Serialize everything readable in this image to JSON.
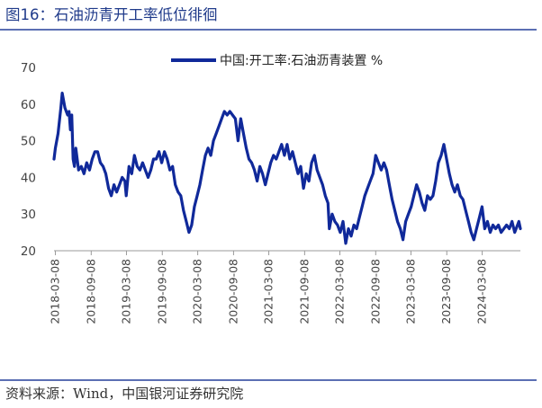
{
  "figure": {
    "title": "图16：石油沥青开工率低位徘徊",
    "source": "资料来源：Wind，中国银河证券研究院"
  },
  "colors": {
    "accent": "#1f3a8a",
    "line": "#10299a",
    "rule": "#5b6fb3"
  },
  "chart_data": {
    "type": "line",
    "ylim": [
      20,
      70
    ],
    "yticks": [
      20,
      30,
      40,
      50,
      60,
      70
    ],
    "x_range": [
      "2018-03-01",
      "2024-09-20"
    ],
    "xticks": [
      "2018-03-08",
      "2018-09-08",
      "2019-03-08",
      "2019-09-08",
      "2020-03-08",
      "2020-09-08",
      "2021-03-08",
      "2021-09-08",
      "2022-03-08",
      "2022-09-08",
      "2023-03-08",
      "2023-09-08",
      "2024-03-08"
    ],
    "legend_position": "top-center",
    "grid": false,
    "series": [
      {
        "name": "中国:开工率:石油沥青装置 %",
        "points": [
          [
            "2018-03-01",
            45
          ],
          [
            "2018-03-08",
            48
          ],
          [
            "2018-03-22",
            52
          ],
          [
            "2018-04-05",
            59
          ],
          [
            "2018-04-12",
            63
          ],
          [
            "2018-04-26",
            59
          ],
          [
            "2018-05-10",
            57
          ],
          [
            "2018-05-17",
            58
          ],
          [
            "2018-05-24",
            53
          ],
          [
            "2018-05-31",
            57
          ],
          [
            "2018-06-07",
            45
          ],
          [
            "2018-06-14",
            43
          ],
          [
            "2018-06-21",
            48
          ],
          [
            "2018-07-05",
            42
          ],
          [
            "2018-07-19",
            43
          ],
          [
            "2018-08-02",
            41
          ],
          [
            "2018-08-16",
            44
          ],
          [
            "2018-08-30",
            42
          ],
          [
            "2018-09-13",
            45
          ],
          [
            "2018-09-27",
            47
          ],
          [
            "2018-10-11",
            47
          ],
          [
            "2018-10-25",
            44
          ],
          [
            "2018-11-08",
            43
          ],
          [
            "2018-11-22",
            41
          ],
          [
            "2018-12-06",
            37
          ],
          [
            "2018-12-20",
            35
          ],
          [
            "2019-01-03",
            38
          ],
          [
            "2019-01-17",
            36
          ],
          [
            "2019-01-31",
            38
          ],
          [
            "2019-02-14",
            40
          ],
          [
            "2019-02-28",
            39
          ],
          [
            "2019-03-07",
            35
          ],
          [
            "2019-03-21",
            43
          ],
          [
            "2019-04-04",
            41
          ],
          [
            "2019-04-18",
            46
          ],
          [
            "2019-05-02",
            43
          ],
          [
            "2019-05-16",
            42
          ],
          [
            "2019-05-30",
            44
          ],
          [
            "2019-06-13",
            42
          ],
          [
            "2019-06-27",
            40
          ],
          [
            "2019-07-11",
            42
          ],
          [
            "2019-07-25",
            45
          ],
          [
            "2019-08-08",
            45
          ],
          [
            "2019-08-22",
            47
          ],
          [
            "2019-09-05",
            44
          ],
          [
            "2019-09-19",
            47
          ],
          [
            "2019-10-03",
            45
          ],
          [
            "2019-10-17",
            42
          ],
          [
            "2019-10-31",
            43
          ],
          [
            "2019-11-14",
            38
          ],
          [
            "2019-11-28",
            36
          ],
          [
            "2019-12-12",
            35
          ],
          [
            "2019-12-26",
            31
          ],
          [
            "2020-01-09",
            28
          ],
          [
            "2020-01-23",
            25
          ],
          [
            "2020-02-06",
            27
          ],
          [
            "2020-02-20",
            32
          ],
          [
            "2020-03-05",
            35
          ],
          [
            "2020-03-19",
            38
          ],
          [
            "2020-04-02",
            42
          ],
          [
            "2020-04-16",
            46
          ],
          [
            "2020-04-30",
            48
          ],
          [
            "2020-05-14",
            46
          ],
          [
            "2020-05-28",
            50
          ],
          [
            "2020-06-11",
            52
          ],
          [
            "2020-06-25",
            54
          ],
          [
            "2020-07-09",
            56
          ],
          [
            "2020-07-23",
            58
          ],
          [
            "2020-08-06",
            57
          ],
          [
            "2020-08-20",
            58
          ],
          [
            "2020-09-03",
            57
          ],
          [
            "2020-09-17",
            56
          ],
          [
            "2020-10-01",
            50
          ],
          [
            "2020-10-15",
            56
          ],
          [
            "2020-10-29",
            52
          ],
          [
            "2020-11-12",
            48
          ],
          [
            "2020-11-26",
            45
          ],
          [
            "2020-12-10",
            44
          ],
          [
            "2020-12-24",
            42
          ],
          [
            "2021-01-07",
            39
          ],
          [
            "2021-01-21",
            43
          ],
          [
            "2021-02-04",
            41
          ],
          [
            "2021-02-18",
            38
          ],
          [
            "2021-03-04",
            41
          ],
          [
            "2021-03-18",
            44
          ],
          [
            "2021-04-01",
            46
          ],
          [
            "2021-04-15",
            45
          ],
          [
            "2021-04-29",
            47
          ],
          [
            "2021-05-13",
            49
          ],
          [
            "2021-05-27",
            46
          ],
          [
            "2021-06-10",
            49
          ],
          [
            "2021-06-24",
            45
          ],
          [
            "2021-07-08",
            47
          ],
          [
            "2021-07-22",
            44
          ],
          [
            "2021-08-05",
            41
          ],
          [
            "2021-08-19",
            43
          ],
          [
            "2021-09-02",
            37
          ],
          [
            "2021-09-16",
            41
          ],
          [
            "2021-09-30",
            39
          ],
          [
            "2021-10-14",
            44
          ],
          [
            "2021-10-28",
            46
          ],
          [
            "2021-11-11",
            42
          ],
          [
            "2021-12-09",
            38
          ],
          [
            "2021-12-23",
            35
          ],
          [
            "2022-01-06",
            33
          ],
          [
            "2022-01-13",
            26
          ],
          [
            "2022-01-27",
            30
          ],
          [
            "2022-02-10",
            28
          ],
          [
            "2022-02-24",
            27
          ],
          [
            "2022-03-10",
            25
          ],
          [
            "2022-03-24",
            28
          ],
          [
            "2022-04-07",
            22
          ],
          [
            "2022-04-21",
            26
          ],
          [
            "2022-05-05",
            24
          ],
          [
            "2022-05-19",
            27
          ],
          [
            "2022-06-02",
            26
          ],
          [
            "2022-06-16",
            29
          ],
          [
            "2022-06-30",
            32
          ],
          [
            "2022-07-14",
            35
          ],
          [
            "2022-07-28",
            37
          ],
          [
            "2022-08-11",
            39
          ],
          [
            "2022-08-25",
            41
          ],
          [
            "2022-09-08",
            46
          ],
          [
            "2022-09-22",
            44
          ],
          [
            "2022-10-06",
            42
          ],
          [
            "2022-10-20",
            44
          ],
          [
            "2022-11-03",
            42
          ],
          [
            "2022-11-17",
            38
          ],
          [
            "2022-12-01",
            34
          ],
          [
            "2022-12-15",
            31
          ],
          [
            "2022-12-29",
            28
          ],
          [
            "2023-01-12",
            26
          ],
          [
            "2023-01-26",
            23
          ],
          [
            "2023-02-09",
            28
          ],
          [
            "2023-02-23",
            30
          ],
          [
            "2023-03-09",
            32
          ],
          [
            "2023-03-23",
            35
          ],
          [
            "2023-04-06",
            38
          ],
          [
            "2023-04-20",
            36
          ],
          [
            "2023-05-04",
            33
          ],
          [
            "2023-05-18",
            31
          ],
          [
            "2023-06-01",
            35
          ],
          [
            "2023-06-15",
            34
          ],
          [
            "2023-06-29",
            35
          ],
          [
            "2023-07-13",
            39
          ],
          [
            "2023-07-27",
            44
          ],
          [
            "2023-08-10",
            46
          ],
          [
            "2023-08-24",
            49
          ],
          [
            "2023-09-07",
            45
          ],
          [
            "2023-09-21",
            41
          ],
          [
            "2023-10-05",
            38
          ],
          [
            "2023-10-19",
            36
          ],
          [
            "2023-11-02",
            38
          ],
          [
            "2023-11-16",
            35
          ],
          [
            "2023-11-30",
            34
          ],
          [
            "2023-12-14",
            31
          ],
          [
            "2023-12-28",
            28
          ],
          [
            "2024-01-11",
            25
          ],
          [
            "2024-01-25",
            23
          ],
          [
            "2024-02-08",
            26
          ],
          [
            "2024-02-22",
            29
          ],
          [
            "2024-03-07",
            32
          ],
          [
            "2024-03-21",
            26
          ],
          [
            "2024-04-04",
            28
          ],
          [
            "2024-04-18",
            25
          ],
          [
            "2024-05-02",
            27
          ],
          [
            "2024-05-16",
            26
          ],
          [
            "2024-05-30",
            27
          ],
          [
            "2024-06-13",
            25
          ],
          [
            "2024-06-27",
            26
          ],
          [
            "2024-07-11",
            27
          ],
          [
            "2024-07-25",
            26
          ],
          [
            "2024-08-08",
            28
          ],
          [
            "2024-08-22",
            25
          ],
          [
            "2024-09-05",
            27
          ],
          [
            "2024-09-12",
            28
          ],
          [
            "2024-09-20",
            26
          ]
        ]
      }
    ]
  }
}
